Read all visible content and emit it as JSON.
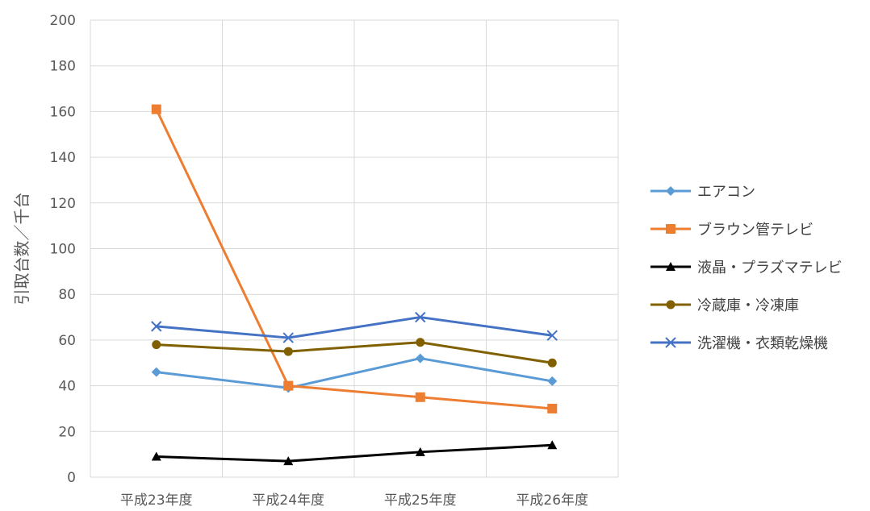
{
  "chart_data": {
    "type": "line",
    "title": "",
    "xlabel": "",
    "ylabel": "引取台数／千台",
    "ylim": [
      0,
      200
    ],
    "ytick_step": 20,
    "grid": true,
    "legend_position": "right",
    "categories": [
      "平成23年度",
      "平成24年度",
      "平成25年度",
      "平成26年度"
    ],
    "series": [
      {
        "name": "エアコン",
        "color": "#5B9BD5",
        "marker": "diamond",
        "values": [
          46,
          39,
          52,
          42
        ]
      },
      {
        "name": "ブラウン管テレビ",
        "color": "#ED7D31",
        "marker": "square",
        "values": [
          161,
          40,
          35,
          30
        ]
      },
      {
        "name": "液晶・プラズマテレビ",
        "color": "#000000",
        "marker": "triangle",
        "values": [
          9,
          7,
          11,
          14
        ]
      },
      {
        "name": "冷蔵庫・冷凍庫",
        "color": "#806000",
        "marker": "circle",
        "values": [
          58,
          55,
          59,
          50
        ]
      },
      {
        "name": "洗濯機・衣類乾燥機",
        "color": "#4472C4",
        "marker": "x",
        "values": [
          66,
          61,
          70,
          62
        ]
      }
    ]
  }
}
